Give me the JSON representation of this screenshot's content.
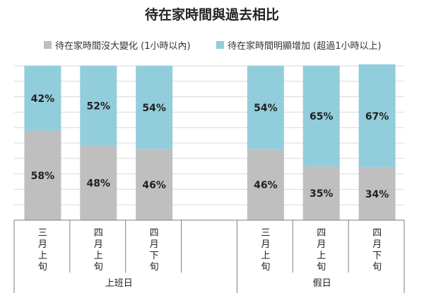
{
  "chart_data": {
    "type": "bar",
    "stacked": true,
    "percent_stacked": true,
    "title": "待在家時間與過去相比",
    "groups": [
      {
        "name": "上班日",
        "categories": [
          "三月上旬",
          "四月上旬",
          "四月下旬"
        ]
      },
      {
        "name": "假日",
        "categories": [
          "三月上旬",
          "四月上旬",
          "四月下旬"
        ]
      }
    ],
    "series": [
      {
        "name": "待在家時間沒大變化 (1小時以內)",
        "color": "#bfbfbf",
        "values": [
          58,
          48,
          46,
          46,
          35,
          34
        ],
        "labels": [
          "58%",
          "48%",
          "46%",
          "46%",
          "35%",
          "34%"
        ]
      },
      {
        "name": "待在家時間明顯增加 (超過1小時以上)",
        "color": "#92cddc",
        "values": [
          42,
          52,
          54,
          54,
          65,
          67
        ],
        "labels": [
          "42%",
          "52%",
          "54%",
          "54%",
          "65%",
          "67%"
        ]
      }
    ],
    "ylim": [
      0,
      100
    ],
    "grid": true,
    "legend": "top"
  }
}
